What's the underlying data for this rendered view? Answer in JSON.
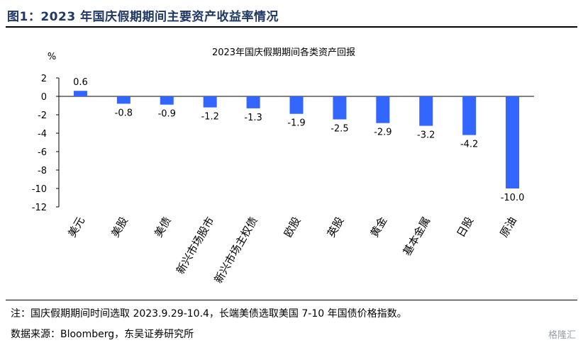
{
  "header": {
    "figure_title": "图1：2023 年国庆假期期间主要资产收益率情况"
  },
  "footer": {
    "note": "注：国庆假期期间时间选取 2023.9.29-10.4，长端美债选取美国 7-10 年国债价格指数。",
    "source": "数据来源：Bloomberg，东吴证券研究所"
  },
  "watermark": "格隆汇",
  "colors": {
    "bar": "#3366ff",
    "title": "#1f3864"
  },
  "chart_data": {
    "type": "bar",
    "title": "2023年国庆假期期间各类资产回报",
    "ylabel": "%",
    "xlabel": "",
    "ylim": [
      -12,
      2
    ],
    "yticks": [
      2,
      0,
      -2,
      -4,
      -6,
      -8,
      -10,
      -12
    ],
    "grid": false,
    "categories": [
      "美元",
      "美股",
      "美债",
      "新兴市场股市",
      "新兴市场主权债",
      "欧股",
      "英股",
      "黄金",
      "基本金属",
      "日股",
      "原油"
    ],
    "values": [
      0.6,
      -0.8,
      -0.9,
      -1.2,
      -1.3,
      -1.9,
      -2.5,
      -2.9,
      -3.2,
      -4.2,
      -10.0
    ],
    "data_labels": [
      "0.6",
      "-0.8",
      "-0.9",
      "-1.2",
      "-1.3",
      "-1.9",
      "-2.5",
      "-2.9",
      "-3.2",
      "-4.2",
      "-10.0"
    ]
  }
}
